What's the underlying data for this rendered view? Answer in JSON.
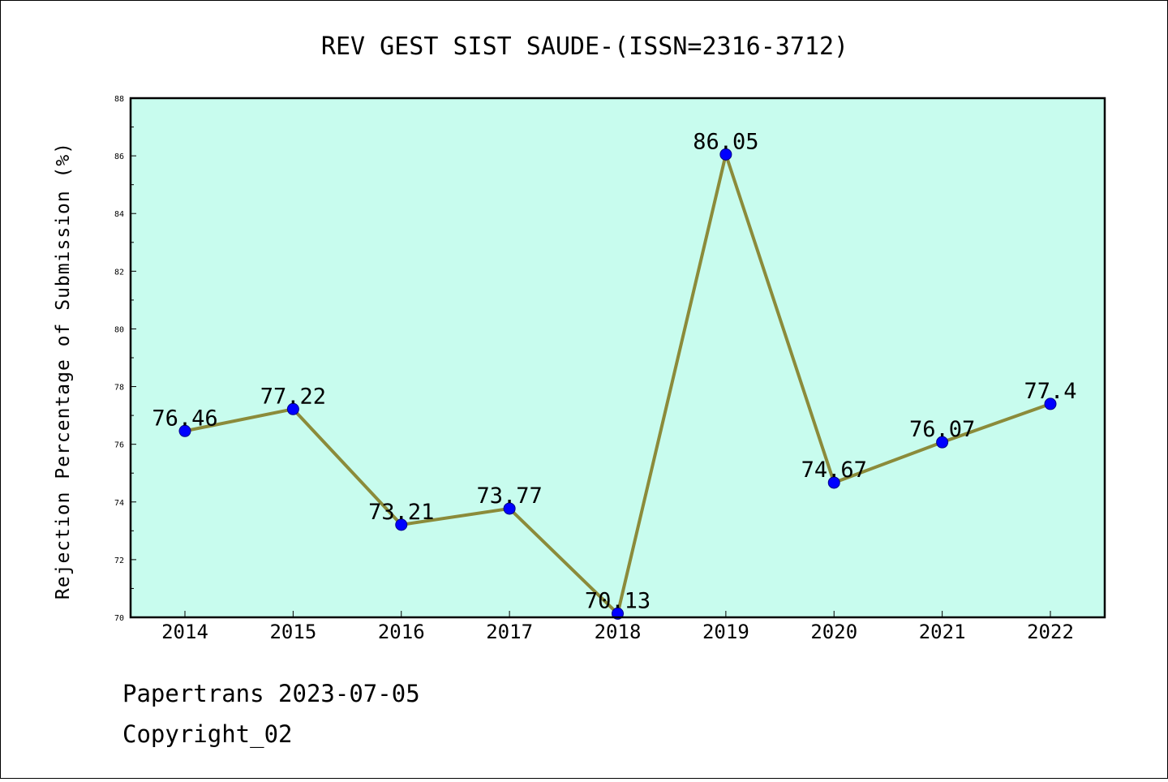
{
  "chart_data": {
    "type": "line",
    "title": "REV GEST SIST SAUDE-(ISSN=2316-3712)",
    "xlabel": "",
    "ylabel": "Rejection Percentage of Submission (%)",
    "categories": [
      "2014",
      "2015",
      "2016",
      "2017",
      "2018",
      "2019",
      "2020",
      "2021",
      "2022"
    ],
    "values": [
      76.46,
      77.22,
      73.21,
      73.77,
      70.13,
      86.05,
      74.67,
      76.07,
      77.4
    ],
    "data_labels": [
      "76.46",
      "77.22",
      "73.21",
      "73.77",
      "70.13",
      "86.05",
      "74.67",
      "76.07",
      "77.4"
    ],
    "ylim": [
      70,
      88
    ],
    "yticks": [
      "70",
      "72",
      "74",
      "76",
      "78",
      "80",
      "82",
      "84",
      "86",
      "88"
    ],
    "grid": false,
    "legend": "none",
    "colors": {
      "plot_background": "#c8fcee",
      "line": "#8b8b3a",
      "marker": "#0000ff",
      "marker_edge": "#00008b"
    }
  },
  "footer": {
    "line1": "Papertrans 2023-07-05",
    "line2": "Copyright_02"
  }
}
